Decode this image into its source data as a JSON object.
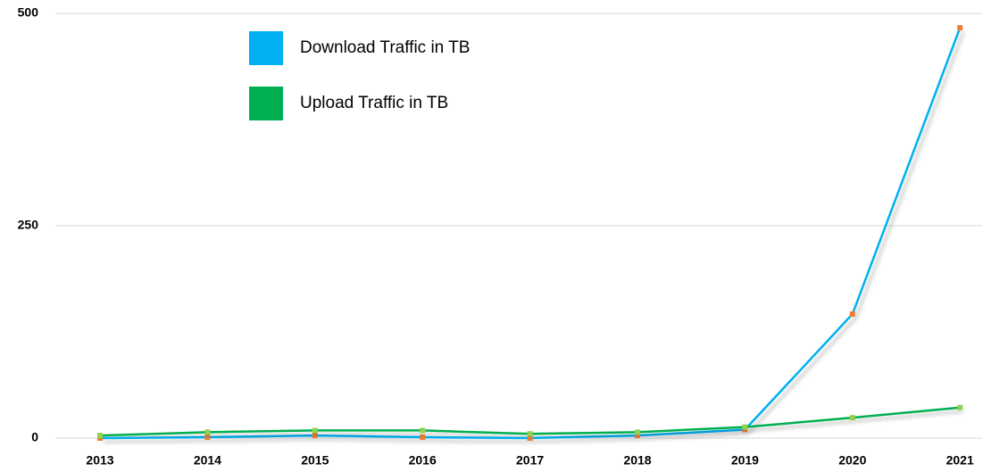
{
  "chart_data": {
    "type": "line",
    "categories": [
      "2013",
      "2014",
      "2015",
      "2016",
      "2017",
      "2018",
      "2019",
      "2020",
      "2021"
    ],
    "series": [
      {
        "name": "Download Traffic in TB",
        "color": "#00b0f0",
        "marker_color": "#ed7d31",
        "values": [
          0,
          1,
          3,
          1,
          0,
          3,
          10,
          146,
          483
        ]
      },
      {
        "name": "Upload Traffic in TB",
        "color": "#00b050",
        "marker_color": "#92d050",
        "values": [
          3,
          7,
          9,
          9,
          5,
          7,
          13,
          24,
          36
        ]
      }
    ],
    "ylim": [
      0,
      500
    ],
    "yticks": [
      0,
      250,
      500
    ],
    "grid": true
  }
}
